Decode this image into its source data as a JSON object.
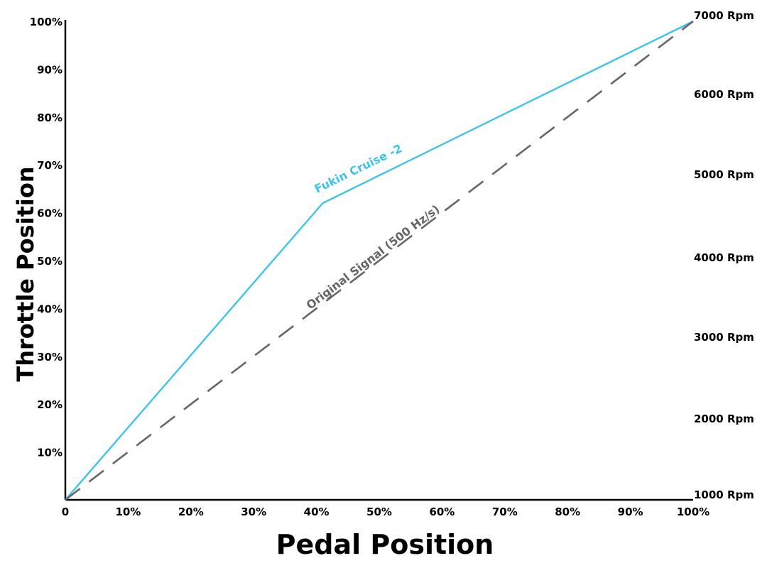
{
  "chart_data": {
    "type": "line",
    "xlabel": "Pedal Position",
    "ylabel": "Throttle Position",
    "xlim": [
      0,
      100
    ],
    "ylim": [
      0,
      100
    ],
    "x_ticks": [
      {
        "value": 0,
        "label": "0"
      },
      {
        "value": 10,
        "label": "10%"
      },
      {
        "value": 20,
        "label": "20%"
      },
      {
        "value": 30,
        "label": "30%"
      },
      {
        "value": 40,
        "label": "40%"
      },
      {
        "value": 50,
        "label": "50%"
      },
      {
        "value": 60,
        "label": "60%"
      },
      {
        "value": 70,
        "label": "70%"
      },
      {
        "value": 80,
        "label": "80%"
      },
      {
        "value": 90,
        "label": "90%"
      },
      {
        "value": 100,
        "label": "100%"
      }
    ],
    "y_ticks": [
      {
        "value": 10,
        "label": "10%"
      },
      {
        "value": 20,
        "label": "20%"
      },
      {
        "value": 30,
        "label": "30%"
      },
      {
        "value": 40,
        "label": "40%"
      },
      {
        "value": 50,
        "label": "50%"
      },
      {
        "value": 60,
        "label": "60%"
      },
      {
        "value": 70,
        "label": "70%"
      },
      {
        "value": 80,
        "label": "80%"
      },
      {
        "value": 90,
        "label": "90%"
      },
      {
        "value": 100,
        "label": "100%"
      }
    ],
    "y2_ticks": [
      {
        "value": 1000,
        "label": "1000 Rpm"
      },
      {
        "value": 2000,
        "label": "2000 Rpm"
      },
      {
        "value": 3000,
        "label": "3000 Rpm"
      },
      {
        "value": 4000,
        "label": "4000 Rpm"
      },
      {
        "value": 5000,
        "label": "5000 Rpm"
      },
      {
        "value": 6000,
        "label": "6000 Rpm"
      },
      {
        "value": 7000,
        "label": "7000 Rpm"
      }
    ],
    "series": [
      {
        "name": "Fukin Cruise -2",
        "color": "#3cc4ea",
        "style": "solid",
        "x": [
          0,
          41,
          100
        ],
        "y": [
          0,
          62,
          100
        ]
      },
      {
        "name": "Original Signal (500 Hz/s)",
        "color": "#666666",
        "style": "dashed",
        "x": [
          0,
          100
        ],
        "y": [
          0,
          100
        ]
      }
    ],
    "grid": false,
    "legend": "inline labels"
  }
}
